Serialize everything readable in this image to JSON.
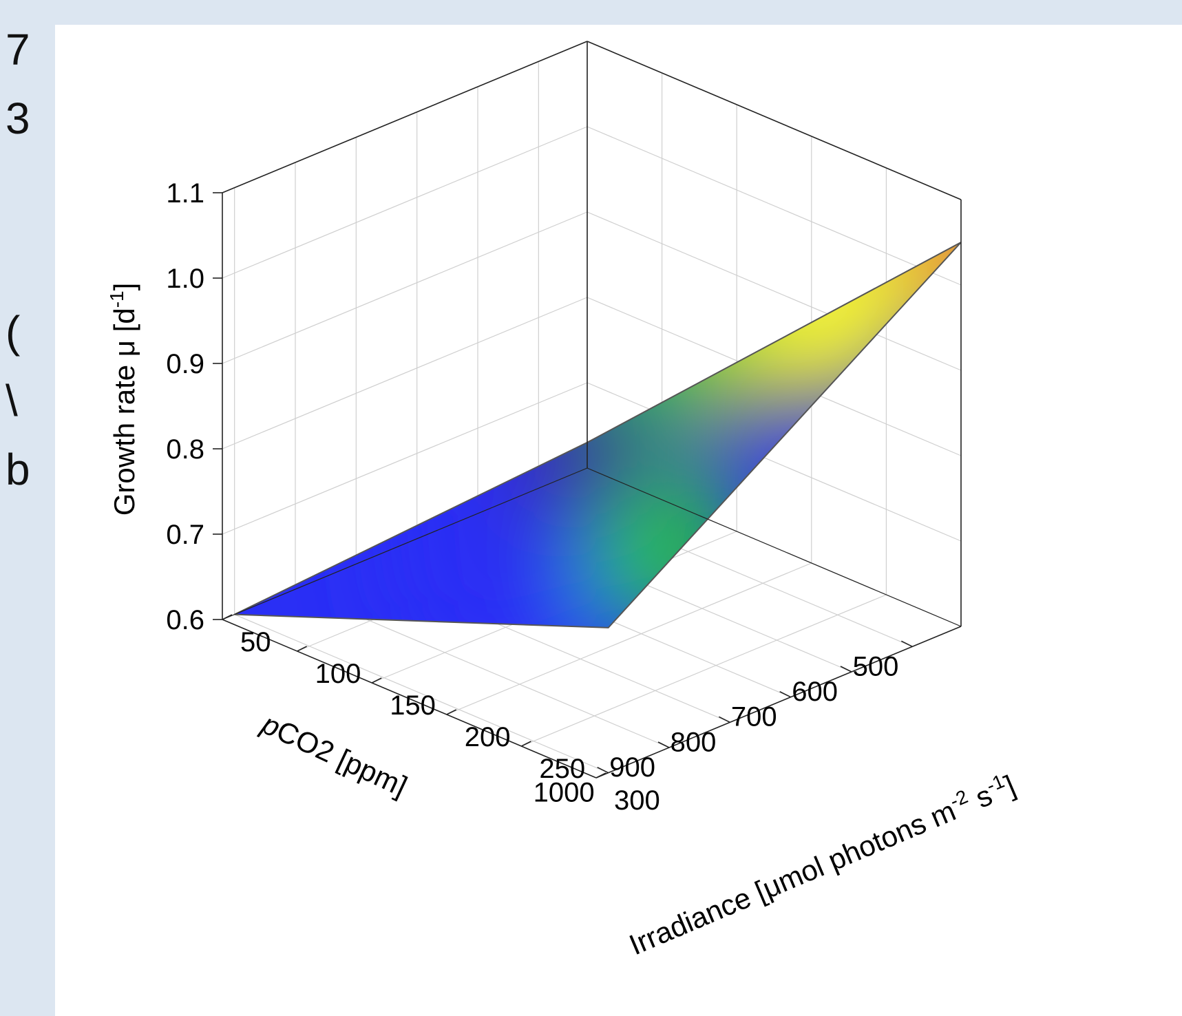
{
  "edge_glyphs": [
    "7",
    "3",
    "(",
    "\\",
    "b"
  ],
  "chart_data": {
    "type": "surface3d",
    "zlabel": "Growth rate μ [d",
    "zlabel_sup": "-1",
    "zlabel_end": "]",
    "xlabel_italic": "p",
    "xlabel": "CO2 [ppm]",
    "ylabel": "Irradiance [μmol photons m",
    "ylabel_sup1": "-2",
    "ylabel_mid": " s",
    "ylabel_sup2": "-1",
    "ylabel_end": "]",
    "x_ticks": [
      "500",
      "600",
      "700",
      "800",
      "900",
      "1000"
    ],
    "y_ticks": [
      "50",
      "100",
      "150",
      "200",
      "250",
      "300"
    ],
    "z_ticks": [
      "0.6",
      "0.7",
      "0.8",
      "0.9",
      "1.0",
      "1.1"
    ],
    "xlim": [
      420,
      1020
    ],
    "ylim": [
      50,
      300
    ],
    "zlim": [
      0.6,
      1.1
    ],
    "surface_corners": [
      {
        "pco2": 420,
        "irradiance": 50,
        "growth_rate": 0.63
      },
      {
        "pco2": 1000,
        "irradiance": 50,
        "growth_rate": 0.6
      },
      {
        "pco2": 1000,
        "irradiance": 300,
        "growth_rate": 0.77
      },
      {
        "pco2": 420,
        "irradiance": 300,
        "growth_rate": 1.05
      }
    ],
    "colorscale": [
      "#3b2a8e",
      "#2a2ff5",
      "#25c830",
      "#f5f530",
      "#ff9a1e"
    ],
    "grid": true
  }
}
